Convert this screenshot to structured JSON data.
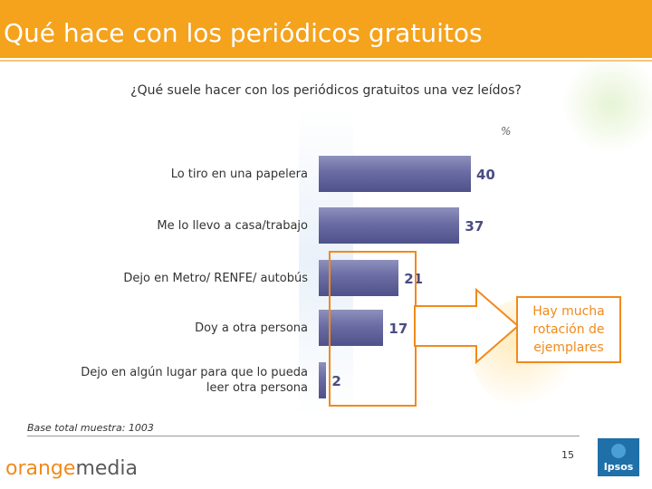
{
  "header": {
    "title": "Qué hace con los periódicos gratuitos"
  },
  "question": "¿Qué suele hacer con los periódicos  gratuitos una vez leídos?",
  "unit_label": "%",
  "chart_data": {
    "type": "bar",
    "orientation": "horizontal",
    "categories": [
      "Lo tiro en una papelera",
      "Me lo llevo a casa/trabajo",
      "Dejo en Metro/ RENFE/ autobús",
      "Doy a otra persona",
      "Dejo en algún lugar para que lo pueda leer otra persona"
    ],
    "category_lines": [
      [
        "Lo tiro en una papelera"
      ],
      [
        "Me lo llevo a casa/trabajo"
      ],
      [
        "Dejo en Metro/ RENFE/ autobús"
      ],
      [
        "Doy a otra persona"
      ],
      [
        "Dejo en algún lugar para que lo pueda",
        "leer otra persona"
      ]
    ],
    "values": [
      40,
      37,
      21,
      17,
      2
    ],
    "xlim": [
      0,
      40
    ],
    "grid": false,
    "bar_color": "#6a6ca3",
    "value_label_color": "#4a4c82"
  },
  "callout": {
    "lines": [
      "Hay mucha",
      "rotación de",
      "ejemplares"
    ],
    "color": "#f08a1c"
  },
  "footer": {
    "base_note": "Base total muestra: 1003",
    "page_number": "15",
    "brand_part1": "orange",
    "brand_part2": "media",
    "ipsos_label": "Ipsos"
  },
  "colors": {
    "title_bar": "#f5a21c",
    "accent": "#f08a1c"
  }
}
